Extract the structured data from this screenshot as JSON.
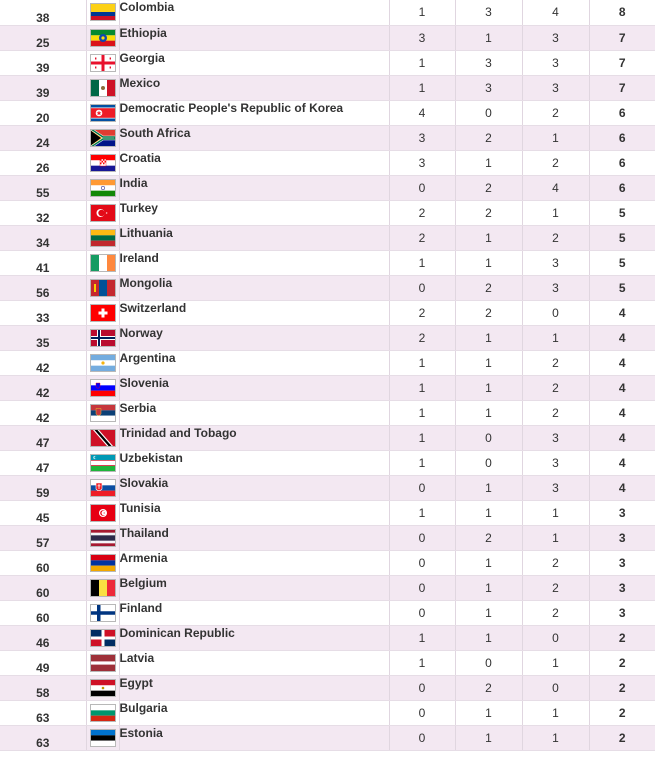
{
  "table": {
    "rows": [
      {
        "rank": "38",
        "country": "Colombia",
        "flag": "flag-colombia-icon",
        "gold": "1",
        "silver": "3",
        "bronze": "4",
        "total": "8"
      },
      {
        "rank": "25",
        "country": "Ethiopia",
        "flag": "flag-ethiopia-icon",
        "gold": "3",
        "silver": "1",
        "bronze": "3",
        "total": "7"
      },
      {
        "rank": "39",
        "country": "Georgia",
        "flag": "flag-georgia-icon",
        "gold": "1",
        "silver": "3",
        "bronze": "3",
        "total": "7"
      },
      {
        "rank": "39",
        "country": "Mexico",
        "flag": "flag-mexico-icon",
        "gold": "1",
        "silver": "3",
        "bronze": "3",
        "total": "7"
      },
      {
        "rank": "20",
        "country": "Democratic People's Republic of Korea",
        "flag": "flag-north-korea-icon",
        "gold": "4",
        "silver": "0",
        "bronze": "2",
        "total": "6"
      },
      {
        "rank": "24",
        "country": "South Africa",
        "flag": "flag-south-africa-icon",
        "gold": "3",
        "silver": "2",
        "bronze": "1",
        "total": "6"
      },
      {
        "rank": "26",
        "country": "Croatia",
        "flag": "flag-croatia-icon",
        "gold": "3",
        "silver": "1",
        "bronze": "2",
        "total": "6"
      },
      {
        "rank": "55",
        "country": "India",
        "flag": "flag-india-icon",
        "gold": "0",
        "silver": "2",
        "bronze": "4",
        "total": "6"
      },
      {
        "rank": "32",
        "country": "Turkey",
        "flag": "flag-turkey-icon",
        "gold": "2",
        "silver": "2",
        "bronze": "1",
        "total": "5"
      },
      {
        "rank": "34",
        "country": "Lithuania",
        "flag": "flag-lithuania-icon",
        "gold": "2",
        "silver": "1",
        "bronze": "2",
        "total": "5"
      },
      {
        "rank": "41",
        "country": "Ireland",
        "flag": "flag-ireland-icon",
        "gold": "1",
        "silver": "1",
        "bronze": "3",
        "total": "5"
      },
      {
        "rank": "56",
        "country": "Mongolia",
        "flag": "flag-mongolia-icon",
        "gold": "0",
        "silver": "2",
        "bronze": "3",
        "total": "5"
      },
      {
        "rank": "33",
        "country": "Switzerland",
        "flag": "flag-switzerland-icon",
        "gold": "2",
        "silver": "2",
        "bronze": "0",
        "total": "4"
      },
      {
        "rank": "35",
        "country": "Norway",
        "flag": "flag-norway-icon",
        "gold": "2",
        "silver": "1",
        "bronze": "1",
        "total": "4"
      },
      {
        "rank": "42",
        "country": "Argentina",
        "flag": "flag-argentina-icon",
        "gold": "1",
        "silver": "1",
        "bronze": "2",
        "total": "4"
      },
      {
        "rank": "42",
        "country": "Slovenia",
        "flag": "flag-slovenia-icon",
        "gold": "1",
        "silver": "1",
        "bronze": "2",
        "total": "4"
      },
      {
        "rank": "42",
        "country": "Serbia",
        "flag": "flag-serbia-icon",
        "gold": "1",
        "silver": "1",
        "bronze": "2",
        "total": "4"
      },
      {
        "rank": "47",
        "country": "Trinidad and Tobago",
        "flag": "flag-trinidad-and-tobago-icon",
        "gold": "1",
        "silver": "0",
        "bronze": "3",
        "total": "4"
      },
      {
        "rank": "47",
        "country": "Uzbekistan",
        "flag": "flag-uzbekistan-icon",
        "gold": "1",
        "silver": "0",
        "bronze": "3",
        "total": "4"
      },
      {
        "rank": "59",
        "country": "Slovakia",
        "flag": "flag-slovakia-icon",
        "gold": "0",
        "silver": "1",
        "bronze": "3",
        "total": "4"
      },
      {
        "rank": "45",
        "country": "Tunisia",
        "flag": "flag-tunisia-icon",
        "gold": "1",
        "silver": "1",
        "bronze": "1",
        "total": "3"
      },
      {
        "rank": "57",
        "country": "Thailand",
        "flag": "flag-thailand-icon",
        "gold": "0",
        "silver": "2",
        "bronze": "1",
        "total": "3"
      },
      {
        "rank": "60",
        "country": "Armenia",
        "flag": "flag-armenia-icon",
        "gold": "0",
        "silver": "1",
        "bronze": "2",
        "total": "3"
      },
      {
        "rank": "60",
        "country": "Belgium",
        "flag": "flag-belgium-icon",
        "gold": "0",
        "silver": "1",
        "bronze": "2",
        "total": "3"
      },
      {
        "rank": "60",
        "country": "Finland",
        "flag": "flag-finland-icon",
        "gold": "0",
        "silver": "1",
        "bronze": "2",
        "total": "3"
      },
      {
        "rank": "46",
        "country": "Dominican Republic",
        "flag": "flag-dominican-republic-icon",
        "gold": "1",
        "silver": "1",
        "bronze": "0",
        "total": "2"
      },
      {
        "rank": "49",
        "country": "Latvia",
        "flag": "flag-latvia-icon",
        "gold": "1",
        "silver": "0",
        "bronze": "1",
        "total": "2"
      },
      {
        "rank": "58",
        "country": "Egypt",
        "flag": "flag-egypt-icon",
        "gold": "0",
        "silver": "2",
        "bronze": "0",
        "total": "2"
      },
      {
        "rank": "63",
        "country": "Bulgaria",
        "flag": "flag-bulgaria-icon",
        "gold": "0",
        "silver": "1",
        "bronze": "1",
        "total": "2"
      },
      {
        "rank": "63",
        "country": "Estonia",
        "flag": "flag-estonia-icon",
        "gold": "0",
        "silver": "1",
        "bronze": "1",
        "total": "2"
      }
    ]
  },
  "colors": {
    "row_alt": "#f3e8f2",
    "row_plain": "#ffffff",
    "grid": "#e0d6e0"
  }
}
